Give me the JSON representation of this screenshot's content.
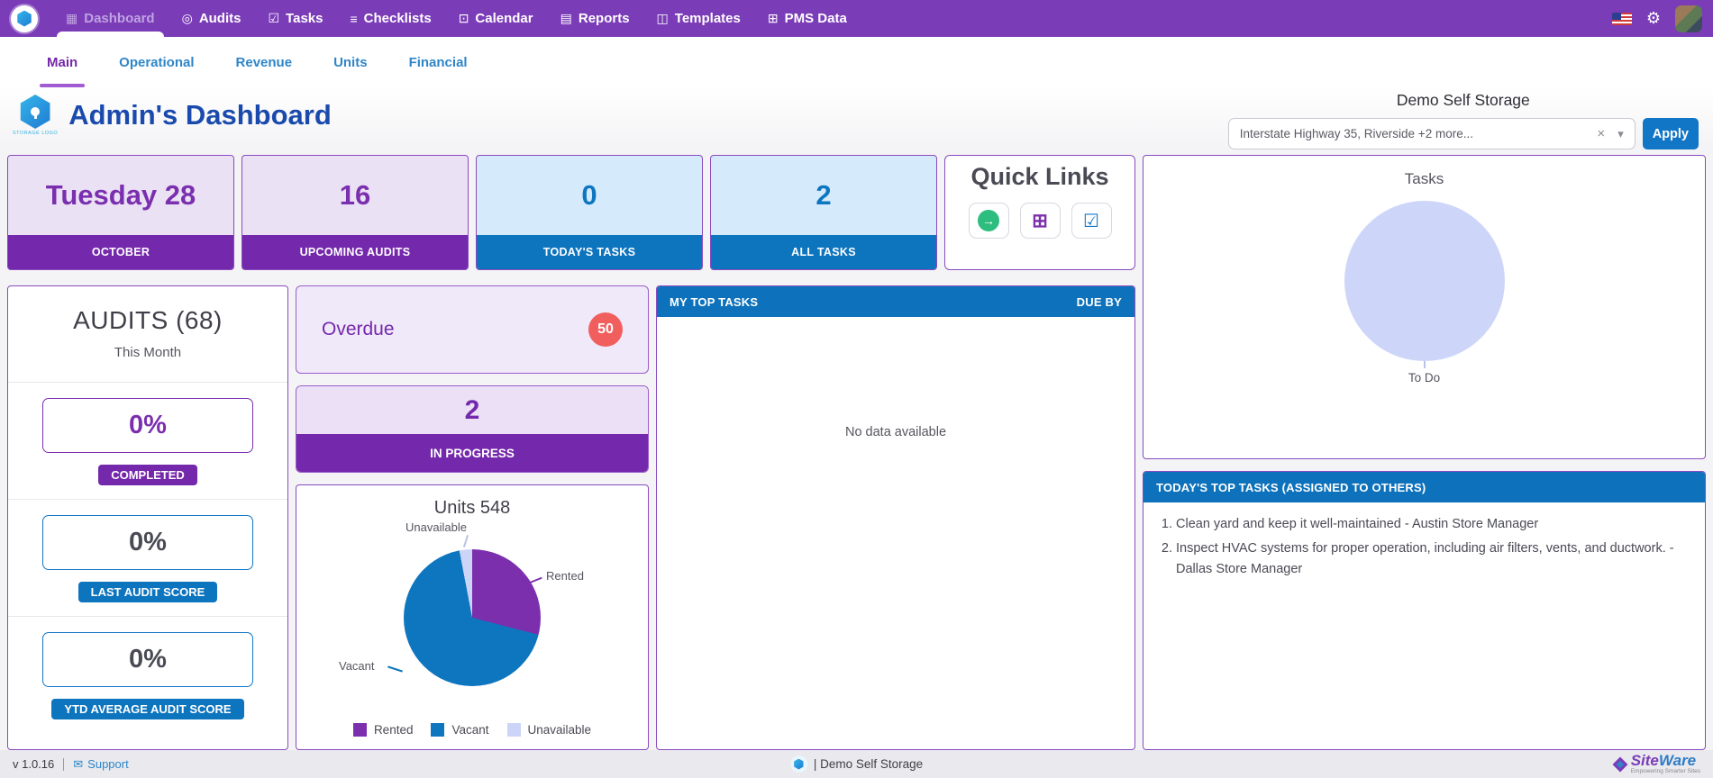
{
  "nav": {
    "active": "Dashboard",
    "items": [
      {
        "label": "Dashboard",
        "icon": "dashboard-icon"
      },
      {
        "label": "Audits",
        "icon": "audits-icon"
      },
      {
        "label": "Tasks",
        "icon": "tasks-icon"
      },
      {
        "label": "Checklists",
        "icon": "checklists-icon"
      },
      {
        "label": "Calendar",
        "icon": "calendar-icon"
      },
      {
        "label": "Reports",
        "icon": "reports-icon"
      },
      {
        "label": "Templates",
        "icon": "templates-icon"
      },
      {
        "label": "PMS Data",
        "icon": "pms-data-icon"
      }
    ]
  },
  "tabs": {
    "active": "Main",
    "items": [
      {
        "label": "Main"
      },
      {
        "label": "Operational"
      },
      {
        "label": "Revenue"
      },
      {
        "label": "Units"
      },
      {
        "label": "Financial"
      }
    ]
  },
  "header": {
    "title": "Admin's Dashboard",
    "logo_caption": "STORAGE LOGO",
    "site_name": "Demo Self Storage",
    "site_filter_value": "Interstate Highway 35, Riverside +2 more...",
    "apply_label": "Apply"
  },
  "stats": [
    {
      "value": "Tuesday 28",
      "label": "OCTOBER",
      "theme": "purple"
    },
    {
      "value": "16",
      "label": "UPCOMING AUDITS",
      "theme": "purple"
    },
    {
      "value": "0",
      "label": "TODAY'S TASKS",
      "theme": "blue"
    },
    {
      "value": "2",
      "label": "ALL TASKS",
      "theme": "blue"
    }
  ],
  "quick_links": {
    "title": "Quick Links",
    "icons": [
      "go-arrow-icon",
      "calendar-icon",
      "clipboard-check-icon"
    ]
  },
  "audits_panel": {
    "title": "AUDITS (68)",
    "subtitle": "This Month",
    "metrics": [
      {
        "value": "0%",
        "label": "COMPLETED",
        "theme": "purple"
      },
      {
        "value": "0%",
        "label": "LAST AUDIT SCORE",
        "theme": "blue"
      },
      {
        "value": "0%",
        "label": "YTD AVERAGE AUDIT SCORE",
        "theme": "blue"
      }
    ]
  },
  "overdue_card": {
    "label": "Overdue",
    "count": "50"
  },
  "in_progress_card": {
    "value": "2",
    "label": "IN PROGRESS"
  },
  "my_top_tasks": {
    "header_left": "MY TOP TASKS",
    "header_right": "DUE BY",
    "empty_text": "No data available"
  },
  "todays_top_tasks": {
    "header": "TODAY'S TOP TASKS (ASSIGNED TO OTHERS)",
    "items": [
      "Clean yard and keep it well-maintained - Austin Store Manager",
      "Inspect HVAC systems for proper operation, including air filters, vents, and ductwork. - Dallas Store Manager"
    ]
  },
  "footer": {
    "version": "v 1.0.16",
    "support_label": "Support",
    "center_text": "| Demo Self Storage",
    "brand_first": "Site",
    "brand_second": "Ware",
    "brand_tagline": "Empowering Smarter Sites"
  },
  "chart_data": [
    {
      "id": "units",
      "type": "pie",
      "title": "Units 548",
      "total_units": 548,
      "legend_position": "bottom",
      "slices": [
        {
          "label": "Rented",
          "pct": 29,
          "color": "#7b2fad"
        },
        {
          "label": "Vacant",
          "pct": 68,
          "color": "#0e76bf"
        },
        {
          "label": "Unavailable",
          "pct": 3,
          "color": "#ccd5f8"
        }
      ]
    },
    {
      "id": "tasks",
      "type": "pie",
      "title": "Tasks",
      "slices": [
        {
          "label": "To Do",
          "pct": 100,
          "color": "#cdd6f9"
        }
      ]
    }
  ],
  "colors": {
    "nav_purple": "#7b3cb8",
    "accent_purple": "#7428ab",
    "accent_blue": "#0d74be",
    "panel_header_blue": "#0d72bb",
    "overdue_red": "#f05f5d",
    "title_blue": "#1a4aad",
    "tab_blue": "#2e86c8"
  }
}
